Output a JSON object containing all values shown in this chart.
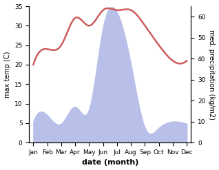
{
  "months": [
    "Jan",
    "Feb",
    "Mar",
    "Apr",
    "May",
    "Jun",
    "Jul",
    "Aug",
    "Sep",
    "Oct",
    "Nov",
    "Dec"
  ],
  "temperature": [
    20,
    24,
    25,
    32,
    30,
    34,
    34,
    34,
    30,
    25,
    21,
    21
  ],
  "precipitation": [
    10,
    13,
    9,
    17,
    16,
    55,
    62,
    37,
    7,
    7,
    10,
    9
  ],
  "temp_color": "#cd5c5c",
  "precip_fill_color": "#b8bfe8",
  "ylabel_left": "max temp (C)",
  "ylabel_right": "med. precipitation (kg/m2)",
  "xlabel": "date (month)",
  "ylim_left": [
    0,
    35
  ],
  "ylim_right": [
    0,
    65
  ],
  "yticks_left": [
    0,
    5,
    10,
    15,
    20,
    25,
    30,
    35
  ],
  "yticks_right": [
    0,
    10,
    20,
    30,
    40,
    50,
    60
  ],
  "bg_color": "#ffffff",
  "line_width": 1.8,
  "smooth_points": 300
}
